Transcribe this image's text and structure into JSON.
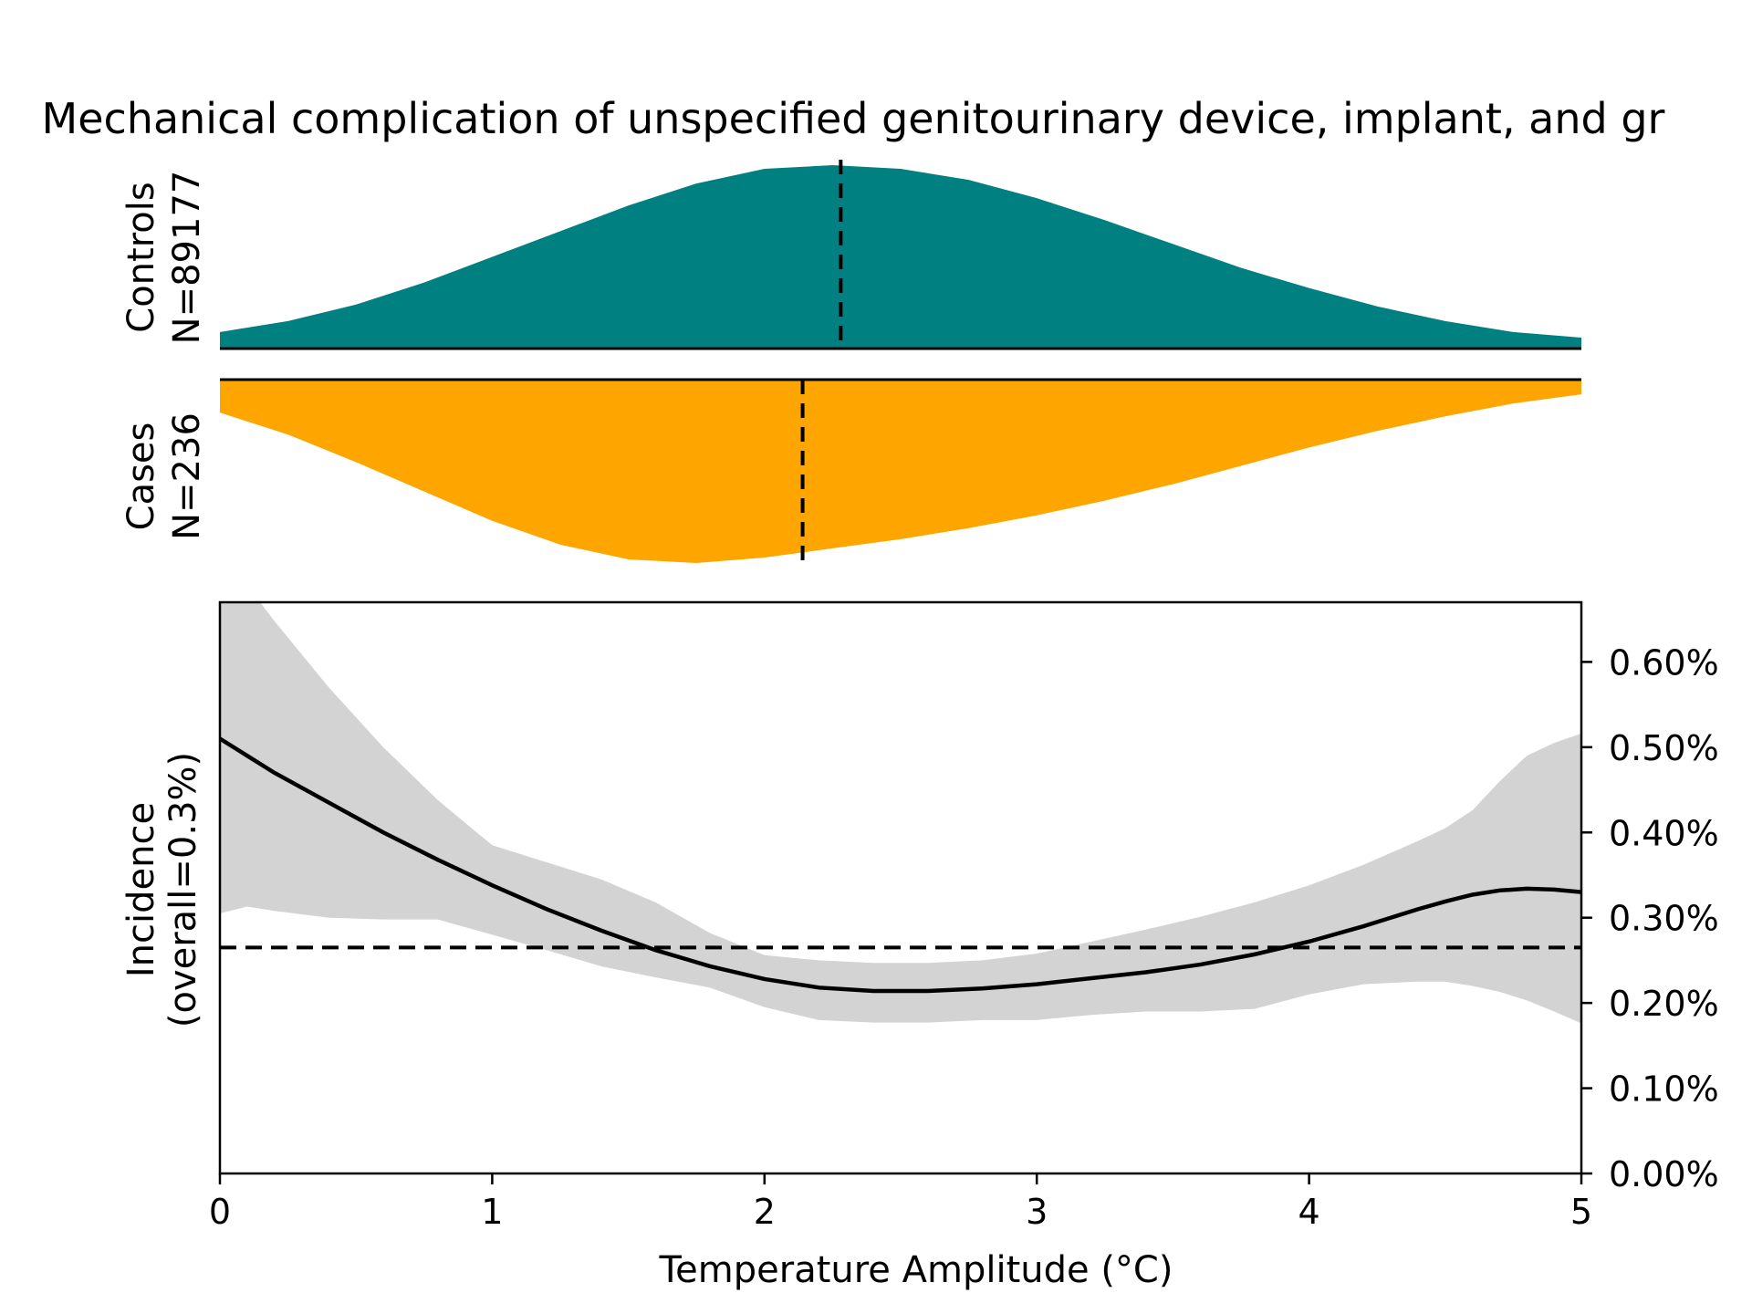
{
  "chart_data": {
    "type": "area",
    "title": "Mechanical complication of unspecified genitourinary device, implant, and gr",
    "colors": {
      "controls": "#008080",
      "cases": "#ffa500",
      "ci_band": "#d3d3d3",
      "line": "#000000"
    },
    "controls": {
      "label_line1": "Controls",
      "label_line2": "N=89177",
      "median": 2.28,
      "density": {
        "x": [
          0,
          0.25,
          0.5,
          0.75,
          1.0,
          1.25,
          1.5,
          1.75,
          2.0,
          2.25,
          2.5,
          2.75,
          3.0,
          3.25,
          3.5,
          3.75,
          4.0,
          4.25,
          4.5,
          4.75,
          5.0
        ],
        "y": [
          0.09,
          0.15,
          0.24,
          0.36,
          0.5,
          0.64,
          0.78,
          0.9,
          0.98,
          1.0,
          0.98,
          0.92,
          0.82,
          0.7,
          0.57,
          0.44,
          0.33,
          0.23,
          0.15,
          0.09,
          0.06
        ]
      }
    },
    "cases": {
      "label_line1": "Cases",
      "label_line2": "N=236",
      "median": 2.14,
      "density": {
        "x": [
          0,
          0.25,
          0.5,
          0.75,
          1.0,
          1.25,
          1.5,
          1.75,
          2.0,
          2.25,
          2.5,
          2.75,
          3.0,
          3.25,
          3.5,
          3.75,
          4.0,
          4.25,
          4.5,
          4.75,
          5.0
        ],
        "y": [
          0.18,
          0.3,
          0.45,
          0.61,
          0.77,
          0.9,
          0.98,
          1.0,
          0.97,
          0.92,
          0.87,
          0.81,
          0.74,
          0.66,
          0.57,
          0.47,
          0.37,
          0.28,
          0.2,
          0.13,
          0.08
        ]
      }
    },
    "incidence": {
      "ylabel_line1": "Incidence",
      "ylabel_line2": "(overall=0.3%)",
      "xlabel": "Temperature Amplitude (°C)",
      "xlim": [
        0,
        5
      ],
      "ylim": [
        0,
        0.67
      ],
      "xticks": [
        0,
        1,
        2,
        3,
        4,
        5
      ],
      "xtick_labels": [
        "0",
        "1",
        "2",
        "3",
        "4",
        "5"
      ],
      "yticks": [
        0,
        0.1,
        0.2,
        0.3,
        0.4,
        0.5,
        0.6
      ],
      "ytick_labels": [
        "0.00%",
        "0.10%",
        "0.20%",
        "0.30%",
        "0.40%",
        "0.50%",
        "0.60%"
      ],
      "overall": 0.265,
      "x": [
        0,
        0.1,
        0.2,
        0.4,
        0.6,
        0.8,
        1.0,
        1.2,
        1.4,
        1.6,
        1.8,
        2.0,
        2.2,
        2.4,
        2.6,
        2.8,
        3.0,
        3.2,
        3.4,
        3.6,
        3.8,
        4.0,
        4.2,
        4.4,
        4.5,
        4.6,
        4.7,
        4.8,
        4.9,
        5.0
      ],
      "mean": [
        0.51,
        0.49,
        0.47,
        0.435,
        0.4,
        0.368,
        0.338,
        0.31,
        0.285,
        0.262,
        0.243,
        0.228,
        0.218,
        0.214,
        0.214,
        0.217,
        0.222,
        0.229,
        0.236,
        0.245,
        0.257,
        0.272,
        0.29,
        0.31,
        0.319,
        0.327,
        0.332,
        0.334,
        0.333,
        0.33
      ],
      "lower": [
        0.305,
        0.313,
        0.308,
        0.3,
        0.298,
        0.298,
        0.28,
        0.262,
        0.243,
        0.23,
        0.218,
        0.195,
        0.18,
        0.177,
        0.177,
        0.18,
        0.18,
        0.186,
        0.19,
        0.19,
        0.193,
        0.21,
        0.222,
        0.225,
        0.225,
        0.22,
        0.213,
        0.203,
        0.19,
        0.176
      ],
      "upper": [
        0.72,
        0.69,
        0.648,
        0.57,
        0.5,
        0.438,
        0.385,
        0.365,
        0.345,
        0.318,
        0.282,
        0.256,
        0.25,
        0.247,
        0.247,
        0.25,
        0.258,
        0.272,
        0.286,
        0.301,
        0.318,
        0.338,
        0.362,
        0.39,
        0.405,
        0.426,
        0.46,
        0.49,
        0.505,
        0.516
      ]
    }
  }
}
